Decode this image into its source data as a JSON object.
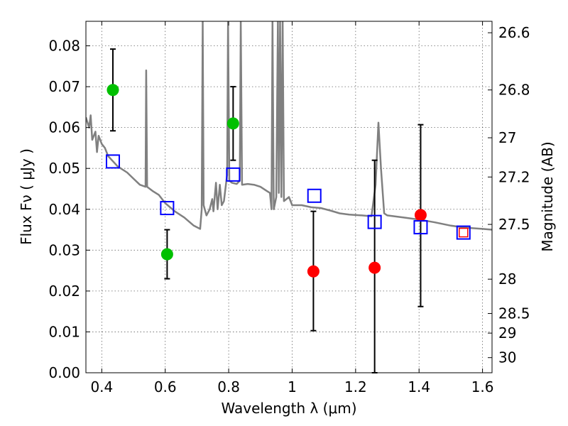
{
  "chart_data": {
    "type": "scatter",
    "xlabel": "Wavelength  λ (μm)",
    "ylabel": "Flux  Fν  ( μJy )",
    "y2label": "Magnitude (AB)",
    "xlim": [
      0.35,
      1.63
    ],
    "ylim": [
      0.0,
      0.086
    ],
    "grid": true,
    "x_ticks": [
      0.4,
      0.6,
      0.8,
      1.0,
      1.2,
      1.4,
      1.6
    ],
    "x_tick_labels": [
      "0.4",
      "0.6",
      "0.8",
      "1",
      "1.2",
      "1.4",
      "1.6"
    ],
    "y_ticks": [
      0.0,
      0.01,
      0.02,
      0.03,
      0.04,
      0.05,
      0.06,
      0.07,
      0.08
    ],
    "y_tick_labels": [
      "0.00",
      "0.01",
      "0.02",
      "0.03",
      "0.04",
      "0.05",
      "0.06",
      "0.07",
      "0.08"
    ],
    "y2_ticks": [
      {
        "label": "26.6",
        "flux": 0.0832
      },
      {
        "label": "26.8",
        "flux": 0.0692
      },
      {
        "label": "27",
        "flux": 0.0575
      },
      {
        "label": "27.2",
        "flux": 0.0479
      },
      {
        "label": "27.5",
        "flux": 0.0363
      },
      {
        "label": "28",
        "flux": 0.0229
      },
      {
        "label": "28.5",
        "flux": 0.0145
      },
      {
        "label": "29",
        "flux": 0.0097
      },
      {
        "label": "30",
        "flux": 0.0037
      }
    ],
    "series": [
      {
        "marker": "circle",
        "color": "#00c000",
        "points": [
          {
            "x": 0.435,
            "y": 0.0692,
            "err_low": 0.0592,
            "err_high": 0.0792
          },
          {
            "x": 0.606,
            "y": 0.029,
            "err_low": 0.023,
            "err_high": 0.035
          },
          {
            "x": 0.814,
            "y": 0.061,
            "err_low": 0.052,
            "err_high": 0.07
          }
        ]
      },
      {
        "marker": "circle",
        "color": "#ff0000",
        "points": [
          {
            "x": 1.067,
            "y": 0.0248,
            "err_low": 0.0103,
            "err_high": 0.0395
          },
          {
            "x": 1.26,
            "y": 0.0257,
            "err_low": 0.0,
            "err_high": 0.052
          },
          {
            "x": 1.405,
            "y": 0.0386,
            "err_low": 0.0162,
            "err_high": 0.0607
          }
        ]
      },
      {
        "marker": "square-open",
        "color": "#0000ff",
        "points": [
          {
            "x": 0.435,
            "y": 0.0517
          },
          {
            "x": 0.606,
            "y": 0.0403
          },
          {
            "x": 0.814,
            "y": 0.0485
          },
          {
            "x": 1.07,
            "y": 0.0433
          },
          {
            "x": 1.26,
            "y": 0.0369
          },
          {
            "x": 1.405,
            "y": 0.0356
          },
          {
            "x": 1.54,
            "y": 0.0343
          }
        ]
      },
      {
        "marker": "square-open-small",
        "color": "#ff0000",
        "points": [
          {
            "x": 1.54,
            "y": 0.0343
          }
        ]
      },
      {
        "marker": "line",
        "color": "#808080",
        "points": [
          {
            "x": 0.35,
            "y": 0.0625
          },
          {
            "x": 0.36,
            "y": 0.06
          },
          {
            "x": 0.365,
            "y": 0.063
          },
          {
            "x": 0.37,
            "y": 0.057
          },
          {
            "x": 0.38,
            "y": 0.059
          },
          {
            "x": 0.385,
            "y": 0.054
          },
          {
            "x": 0.39,
            "y": 0.058
          },
          {
            "x": 0.4,
            "y": 0.056
          },
          {
            "x": 0.41,
            "y": 0.055
          },
          {
            "x": 0.42,
            "y": 0.053
          },
          {
            "x": 0.45,
            "y": 0.0505
          },
          {
            "x": 0.48,
            "y": 0.049
          },
          {
            "x": 0.5,
            "y": 0.0475
          },
          {
            "x": 0.52,
            "y": 0.046
          },
          {
            "x": 0.538,
            "y": 0.0455
          },
          {
            "x": 0.54,
            "y": 0.074
          },
          {
            "x": 0.543,
            "y": 0.0455
          },
          {
            "x": 0.56,
            "y": 0.0445
          },
          {
            "x": 0.58,
            "y": 0.0435
          },
          {
            "x": 0.6,
            "y": 0.0415
          },
          {
            "x": 0.63,
            "y": 0.0395
          },
          {
            "x": 0.66,
            "y": 0.038
          },
          {
            "x": 0.69,
            "y": 0.036
          },
          {
            "x": 0.71,
            "y": 0.0352
          },
          {
            "x": 0.715,
            "y": 0.04
          },
          {
            "x": 0.718,
            "y": 0.086
          },
          {
            "x": 0.721,
            "y": 0.041
          },
          {
            "x": 0.73,
            "y": 0.0385
          },
          {
            "x": 0.74,
            "y": 0.04
          },
          {
            "x": 0.748,
            "y": 0.0425
          },
          {
            "x": 0.752,
            "y": 0.0395
          },
          {
            "x": 0.76,
            "y": 0.0465
          },
          {
            "x": 0.765,
            "y": 0.04
          },
          {
            "x": 0.772,
            "y": 0.046
          },
          {
            "x": 0.778,
            "y": 0.041
          },
          {
            "x": 0.785,
            "y": 0.042
          },
          {
            "x": 0.795,
            "y": 0.0485
          },
          {
            "x": 0.798,
            "y": 0.086
          },
          {
            "x": 0.802,
            "y": 0.047
          },
          {
            "x": 0.81,
            "y": 0.0465
          },
          {
            "x": 0.825,
            "y": 0.0462
          },
          {
            "x": 0.835,
            "y": 0.047
          },
          {
            "x": 0.838,
            "y": 0.086
          },
          {
            "x": 0.842,
            "y": 0.046
          },
          {
            "x": 0.86,
            "y": 0.0462
          },
          {
            "x": 0.88,
            "y": 0.046
          },
          {
            "x": 0.9,
            "y": 0.0455
          },
          {
            "x": 0.92,
            "y": 0.0445
          },
          {
            "x": 0.93,
            "y": 0.044
          },
          {
            "x": 0.935,
            "y": 0.04
          },
          {
            "x": 0.938,
            "y": 0.086
          },
          {
            "x": 0.942,
            "y": 0.04
          },
          {
            "x": 0.95,
            "y": 0.043
          },
          {
            "x": 0.955,
            "y": 0.086
          },
          {
            "x": 0.958,
            "y": 0.044
          },
          {
            "x": 0.962,
            "y": 0.086
          },
          {
            "x": 0.966,
            "y": 0.043
          },
          {
            "x": 0.97,
            "y": 0.086
          },
          {
            "x": 0.974,
            "y": 0.042
          },
          {
            "x": 0.99,
            "y": 0.043
          },
          {
            "x": 1.0,
            "y": 0.041
          },
          {
            "x": 1.03,
            "y": 0.041
          },
          {
            "x": 1.06,
            "y": 0.0405
          },
          {
            "x": 1.09,
            "y": 0.0403
          },
          {
            "x": 1.12,
            "y": 0.0397
          },
          {
            "x": 1.15,
            "y": 0.039
          },
          {
            "x": 1.18,
            "y": 0.0387
          },
          {
            "x": 1.22,
            "y": 0.0385
          },
          {
            "x": 1.25,
            "y": 0.0383
          },
          {
            "x": 1.263,
            "y": 0.046
          },
          {
            "x": 1.272,
            "y": 0.0612
          },
          {
            "x": 1.28,
            "y": 0.05
          },
          {
            "x": 1.29,
            "y": 0.039
          },
          {
            "x": 1.3,
            "y": 0.0385
          },
          {
            "x": 1.35,
            "y": 0.038
          },
          {
            "x": 1.4,
            "y": 0.0375
          },
          {
            "x": 1.45,
            "y": 0.0368
          },
          {
            "x": 1.5,
            "y": 0.036
          },
          {
            "x": 1.55,
            "y": 0.0355
          },
          {
            "x": 1.6,
            "y": 0.0352
          },
          {
            "x": 1.63,
            "y": 0.035
          }
        ]
      }
    ]
  }
}
